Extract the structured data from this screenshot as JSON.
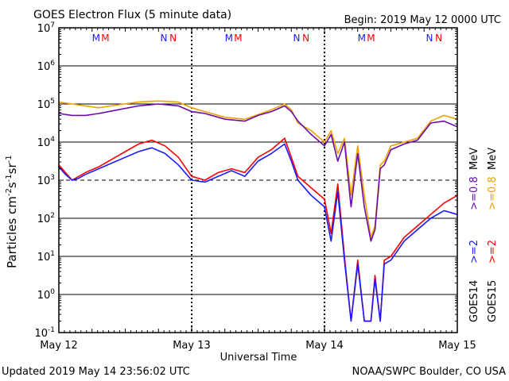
{
  "header": {
    "title": "GOES Electron Flux (5 minute data)",
    "begin": "Begin: 2019 May 12 0000 UTC"
  },
  "footer": {
    "updated": "Updated 2019 May 14 23:56:02 UTC",
    "credit": "NOAA/SWPC Boulder, CO USA"
  },
  "colors": {
    "goes14_2mev": "#1a1aff",
    "goes15_2mev": "#ff0000",
    "goes14_08mev": "#6a0dad",
    "goes15_08mev": "#f0a000",
    "threshold": "#000000"
  },
  "chart_data": {
    "type": "line",
    "title": "GOES Electron Flux (5 minute data)",
    "xlabel": "Universal Time",
    "ylabel": "Particles cm-2 s-1 sr-1",
    "yscale": "log",
    "ylim_exp": [
      -1,
      7
    ],
    "ytick_exponents": [
      7,
      6,
      5,
      4,
      3,
      2,
      1,
      0,
      -1
    ],
    "x_unit": "days since 2019 May 12 00:00 UTC",
    "xlim": [
      0,
      3
    ],
    "x_tick_labels": [
      {
        "x": 0,
        "label": "May 12"
      },
      {
        "x": 1,
        "label": "May 13"
      },
      {
        "x": 2,
        "label": "May 14"
      },
      {
        "x": 3,
        "label": "May 15"
      }
    ],
    "threshold_exp": 3,
    "grid": true,
    "markers": [
      {
        "x": 0.28,
        "label": "M",
        "color": "#1a1aff"
      },
      {
        "x": 0.35,
        "label": "M",
        "color": "#ff0000"
      },
      {
        "x": 0.79,
        "label": "N",
        "color": "#1a1aff"
      },
      {
        "x": 0.86,
        "label": "N",
        "color": "#ff0000"
      },
      {
        "x": 1.28,
        "label": "M",
        "color": "#1a1aff"
      },
      {
        "x": 1.35,
        "label": "M",
        "color": "#ff0000"
      },
      {
        "x": 1.79,
        "label": "N",
        "color": "#1a1aff"
      },
      {
        "x": 1.86,
        "label": "N",
        "color": "#ff0000"
      },
      {
        "x": 2.28,
        "label": "M",
        "color": "#1a1aff"
      },
      {
        "x": 2.35,
        "label": "M",
        "color": "#ff0000"
      },
      {
        "x": 2.79,
        "label": "N",
        "color": "#1a1aff"
      },
      {
        "x": 2.86,
        "label": "N",
        "color": "#ff0000"
      }
    ],
    "legend": [
      {
        "text": "GOES14",
        "color": "#000000"
      },
      {
        "text": "GOES15",
        "color": "#000000"
      },
      {
        "text": ">=2",
        "color": "#1a1aff"
      },
      {
        "text": ">=2",
        "color": "#ff0000"
      },
      {
        "text": ">=0.8",
        "color": "#6a0dad"
      },
      {
        "text": ">=0.8",
        "color": "#f0a000"
      },
      {
        "text": "MeV",
        "color": "#000000"
      },
      {
        "text": "MeV",
        "color": "#000000"
      }
    ],
    "series": [
      {
        "name": "GOES15 >=0.8 MeV",
        "color": "#f0a000",
        "x": [
          0,
          0.1,
          0.2,
          0.3,
          0.45,
          0.6,
          0.75,
          0.9,
          1.0,
          1.1,
          1.25,
          1.4,
          1.5,
          1.6,
          1.7,
          1.75,
          1.8,
          1.9,
          2.0,
          2.05,
          2.1,
          2.15,
          2.2,
          2.25,
          2.3,
          2.35,
          2.38,
          2.42,
          2.45,
          2.5,
          2.6,
          2.7,
          2.8,
          2.9,
          3.0
        ],
        "y": [
          5.05,
          5.0,
          4.95,
          4.9,
          4.98,
          5.05,
          5.08,
          5.05,
          4.9,
          4.8,
          4.65,
          4.6,
          4.72,
          4.85,
          5.0,
          4.85,
          4.5,
          4.3,
          4.0,
          4.3,
          3.7,
          4.1,
          2.6,
          3.9,
          2.6,
          1.5,
          1.8,
          3.4,
          3.5,
          3.9,
          4.0,
          4.1,
          4.55,
          4.7,
          4.6
        ]
      },
      {
        "name": "GOES14 >=0.8 MeV",
        "color": "#6a0dad",
        "x": [
          0,
          0.1,
          0.2,
          0.3,
          0.45,
          0.6,
          0.75,
          0.9,
          1.0,
          1.1,
          1.25,
          1.4,
          1.5,
          1.6,
          1.7,
          1.75,
          1.8,
          1.9,
          2.0,
          2.05,
          2.1,
          2.15,
          2.2,
          2.25,
          2.3,
          2.35,
          2.38,
          2.42,
          2.45,
          2.5,
          2.6,
          2.7,
          2.8,
          2.9,
          3.0
        ],
        "y": [
          4.75,
          4.7,
          4.7,
          4.75,
          4.85,
          4.95,
          5.0,
          4.95,
          4.8,
          4.75,
          4.6,
          4.55,
          4.7,
          4.8,
          4.95,
          4.8,
          4.55,
          4.2,
          3.9,
          4.2,
          3.5,
          4.0,
          2.3,
          3.7,
          2.3,
          1.4,
          1.7,
          3.3,
          3.4,
          3.8,
          3.95,
          4.05,
          4.5,
          4.55,
          4.4
        ]
      },
      {
        "name": "GOES15 >=2 MeV",
        "color": "#ff0000",
        "x": [
          0,
          0.05,
          0.1,
          0.15,
          0.2,
          0.3,
          0.4,
          0.5,
          0.6,
          0.7,
          0.8,
          0.9,
          1.0,
          1.1,
          1.2,
          1.3,
          1.4,
          1.5,
          1.6,
          1.7,
          1.75,
          1.8,
          1.9,
          2.0,
          2.05,
          2.1,
          2.15,
          2.2,
          2.25,
          2.3,
          2.35,
          2.38,
          2.42,
          2.45,
          2.5,
          2.6,
          2.7,
          2.8,
          2.9,
          3.0
        ],
        "y": [
          3.4,
          3.2,
          3.0,
          3.1,
          3.2,
          3.35,
          3.55,
          3.75,
          3.95,
          4.05,
          3.9,
          3.6,
          3.1,
          3.0,
          3.2,
          3.3,
          3.2,
          3.6,
          3.8,
          4.1,
          3.6,
          3.1,
          2.8,
          2.5,
          1.6,
          2.9,
          1.0,
          -0.7,
          0.9,
          -0.7,
          -0.7,
          0.5,
          -0.7,
          0.9,
          1.0,
          1.5,
          1.8,
          2.1,
          2.4,
          2.6
        ]
      },
      {
        "name": "GOES14 >=2 MeV",
        "color": "#1a1aff",
        "x": [
          0,
          0.05,
          0.1,
          0.15,
          0.2,
          0.3,
          0.4,
          0.5,
          0.6,
          0.7,
          0.8,
          0.9,
          1.0,
          1.1,
          1.2,
          1.3,
          1.4,
          1.5,
          1.6,
          1.7,
          1.75,
          1.8,
          1.9,
          2.0,
          2.05,
          2.1,
          2.15,
          2.2,
          2.25,
          2.3,
          2.35,
          2.38,
          2.42,
          2.45,
          2.5,
          2.6,
          2.7,
          2.8,
          2.9,
          3.0
        ],
        "y": [
          3.35,
          3.15,
          3.0,
          3.05,
          3.15,
          3.3,
          3.45,
          3.6,
          3.75,
          3.85,
          3.7,
          3.4,
          3.0,
          2.95,
          3.1,
          3.25,
          3.1,
          3.5,
          3.7,
          3.95,
          3.5,
          3.0,
          2.6,
          2.3,
          1.4,
          2.7,
          0.9,
          -0.7,
          0.8,
          -0.7,
          -0.7,
          0.4,
          -0.7,
          0.8,
          0.9,
          1.4,
          1.7,
          2.0,
          2.2,
          2.1
        ]
      }
    ]
  }
}
